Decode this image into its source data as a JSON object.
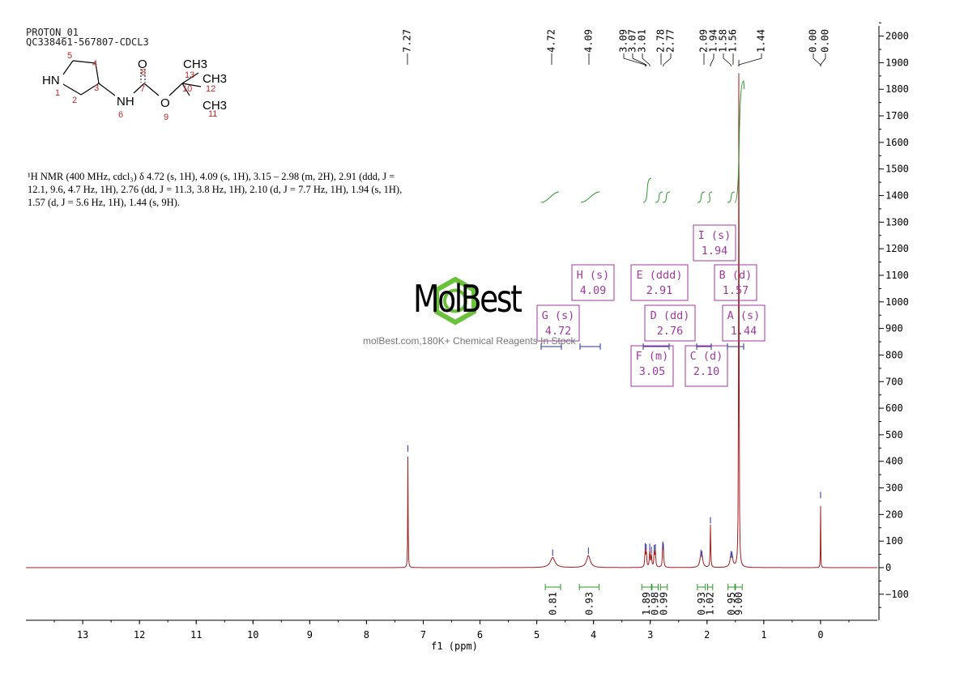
{
  "header": {
    "experiment": "PROTON_01",
    "sample": "QC338461-567807-CDCL3"
  },
  "description_lines": [
    "¹H NMR (400 MHz, cdcl₃) δ 4.72 (s, 1H), 4.09 (s, 1H), 3.15 – 2.98 (m, 2H), 2.91 (ddd, J =",
    "12.1, 9.6, 4.7 Hz, 1H), 2.76 (dd, J = 11.3, 3.8 Hz, 1H), 2.10 (d, J = 7.7 Hz, 1H), 1.94 (s, 1H),",
    "1.57 (d, J = 5.6 Hz, 1H), 1.44 (s, 9H)."
  ],
  "structure": {
    "groups": [
      "HN",
      "NH",
      "O",
      "O",
      "CH3",
      "CH3",
      "CH3"
    ],
    "atom_numbers": [
      "1",
      "2",
      "3",
      "4",
      "5",
      "6",
      "7",
      "8",
      "9",
      "10",
      "11",
      "12",
      "13"
    ]
  },
  "watermark": {
    "brand": "MolBest",
    "slogan": "molBest.com,180K+ Chemical Reagents In Stock"
  },
  "colors": {
    "spectrum": "#a01c1c",
    "integral": "#2a9a2a",
    "label_box": "#a03aa0",
    "peak_tick": "#2e2ea0",
    "logo": "#6ac23a"
  },
  "chart_data": {
    "type": "line",
    "xlabel": "f1 (ppm)",
    "x_range": [
      14.0,
      -1.0
    ],
    "y_range": [
      -200,
      2050
    ],
    "x_ticks": [
      13,
      12,
      11,
      10,
      9,
      8,
      7,
      6,
      5,
      4,
      3,
      2,
      1,
      0
    ],
    "y_ticks": [
      2000,
      1900,
      1800,
      1700,
      1600,
      1500,
      1400,
      1300,
      1200,
      1100,
      1000,
      900,
      800,
      700,
      600,
      500,
      400,
      300,
      200,
      100,
      0,
      -100
    ],
    "peaks": [
      {
        "ppm": 7.27,
        "height": 430,
        "width": 0.004
      },
      {
        "ppm": 4.72,
        "height": 38,
        "width": 0.05
      },
      {
        "ppm": 4.09,
        "height": 45,
        "width": 0.04
      },
      {
        "ppm": 3.09,
        "height": 62,
        "width": 0.008
      },
      {
        "ppm": 3.07,
        "height": 58,
        "width": 0.008
      },
      {
        "ppm": 3.01,
        "height": 60,
        "width": 0.008
      },
      {
        "ppm": 2.98,
        "height": 48,
        "width": 0.008
      },
      {
        "ppm": 2.93,
        "height": 55,
        "width": 0.008
      },
      {
        "ppm": 2.91,
        "height": 58,
        "width": 0.008
      },
      {
        "ppm": 2.78,
        "height": 68,
        "width": 0.008
      },
      {
        "ppm": 2.77,
        "height": 60,
        "width": 0.008
      },
      {
        "ppm": 2.11,
        "height": 36,
        "width": 0.02
      },
      {
        "ppm": 2.09,
        "height": 33,
        "width": 0.02
      },
      {
        "ppm": 1.94,
        "height": 160,
        "width": 0.006
      },
      {
        "ppm": 1.58,
        "height": 32,
        "width": 0.02
      },
      {
        "ppm": 1.56,
        "height": 30,
        "width": 0.02
      },
      {
        "ppm": 1.44,
        "height": 1880,
        "width": 0.005
      },
      {
        "ppm": 0.0,
        "height": 255,
        "width": 0.003
      }
    ],
    "peak_labels": [
      "7.27",
      "4.72",
      "4.09",
      "3.09",
      "3.07",
      "3.01",
      "2.78",
      "2.77",
      "2.09",
      "1.94",
      "1.58",
      "1.56",
      "1.44",
      "0.00",
      "0.00"
    ],
    "peak_label_ppm": [
      7.27,
      4.72,
      4.09,
      3.09,
      3.07,
      3.01,
      2.78,
      2.77,
      2.09,
      1.94,
      1.58,
      1.56,
      1.44,
      0.0,
      0.0
    ],
    "integrals": [
      {
        "from": 4.85,
        "to": 4.58,
        "value": "0.81"
      },
      {
        "from": 4.25,
        "to": 3.9,
        "value": "0.93"
      },
      {
        "from": 3.15,
        "to": 2.98,
        "value": "1.89"
      },
      {
        "from": 2.97,
        "to": 2.86,
        "value": "0.98"
      },
      {
        "from": 2.82,
        "to": 2.7,
        "value": "0.99"
      },
      {
        "from": 2.17,
        "to": 2.03,
        "value": "0.93"
      },
      {
        "from": 1.99,
        "to": 1.9,
        "value": "1.02"
      },
      {
        "from": 1.63,
        "to": 1.51,
        "value": "0.95"
      },
      {
        "from": 1.5,
        "to": 1.38,
        "value": "9.00"
      }
    ],
    "multiplets": [
      {
        "label": "G (s)",
        "shift": "4.72"
      },
      {
        "label": "H (s)",
        "shift": "4.09"
      },
      {
        "label": "E (ddd)",
        "shift": "2.91"
      },
      {
        "label": "D (dd)",
        "shift": "2.76"
      },
      {
        "label": "F (m)",
        "shift": "3.05"
      },
      {
        "label": "I (s)",
        "shift": "1.94"
      },
      {
        "label": "B (d)",
        "shift": "1.57"
      },
      {
        "label": "C (d)",
        "shift": "2.10"
      },
      {
        "label": "A (s)",
        "shift": "1.44"
      }
    ]
  }
}
